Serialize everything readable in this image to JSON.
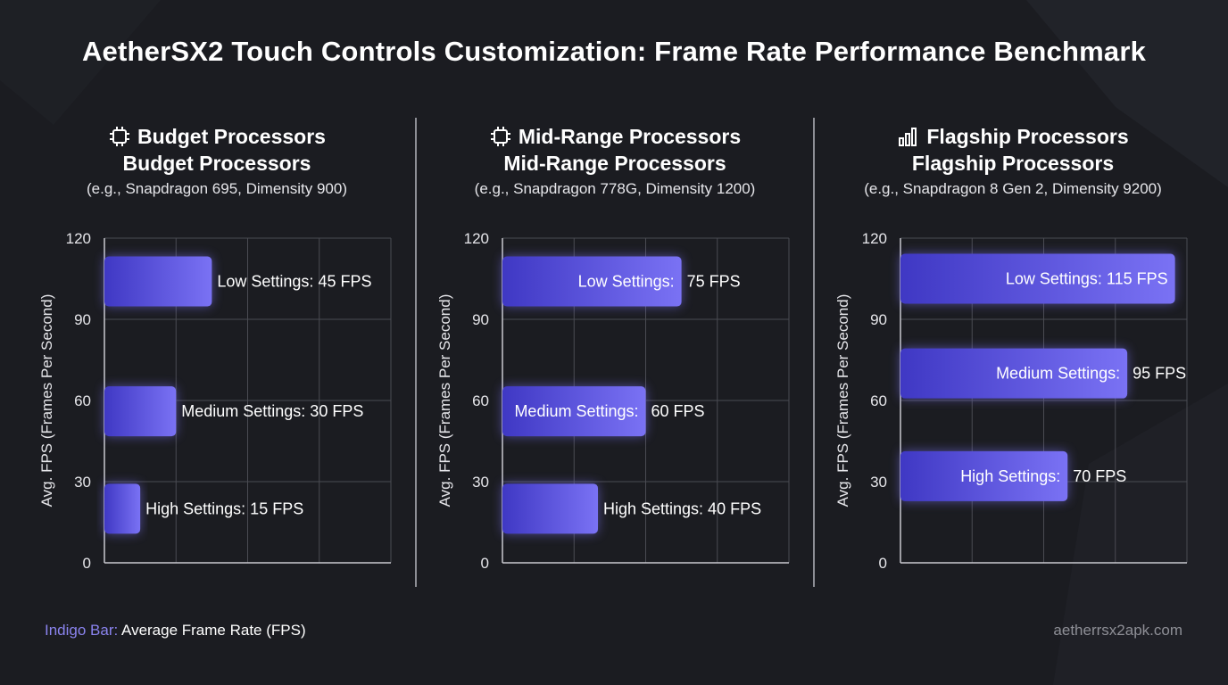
{
  "title": "AetherSX2 Touch Controls Customization: Frame Rate Performance Benchmark",
  "colors": {
    "bar_start": "#3f38c4",
    "bar_end": "#7a72f4",
    "grid": "#4a4b52",
    "axis": "#c9c9cf",
    "divider": "#8d8e95",
    "legend_key": "#8a83ee"
  },
  "legend": {
    "key_label": "Indigo Bar:",
    "key_text": "Average Frame Rate (FPS)"
  },
  "site": "aetherrsx2apk.com",
  "panels": [
    {
      "icon": "chip-icon",
      "title": "Budget Processors",
      "title_repeat": "Budget Processors",
      "subtitle": "(e.g., Snapdragon 695, Dimensity 900)"
    },
    {
      "icon": "chip-icon",
      "title": "Mid-Range Processors",
      "title_repeat": "Mid-Range Processors",
      "subtitle": "(e.g., Snapdragon 778G, Dimensity 1200)"
    },
    {
      "icon": "signal-bars-icon",
      "title": "Flagship Processors",
      "title_repeat": "Flagship Processors",
      "subtitle": "(e.g., Snapdragon 8 Gen 2, Dimensity 9200)"
    }
  ],
  "chart_data": [
    {
      "type": "bar",
      "orientation": "horizontal",
      "title": "Budget Processors",
      "ylabel": "Avg. FPS (Frames Per Second)",
      "ylim": [
        0,
        120
      ],
      "yticks": [
        0,
        30,
        60,
        90,
        120
      ],
      "grid": true,
      "bars": [
        {
          "label": "Low Settings: 45 FPS",
          "value": 45,
          "y": 104
        },
        {
          "label": "Medium Settings: 30 FPS",
          "value": 30,
          "y": 56
        },
        {
          "label": "High Settings: 15 FPS",
          "value": 15,
          "y": 20
        }
      ]
    },
    {
      "type": "bar",
      "orientation": "horizontal",
      "title": "Mid-Range Processors",
      "ylabel": "Avg. FPS (Frames Per Second)",
      "ylim": [
        0,
        120
      ],
      "yticks": [
        0,
        30,
        60,
        90,
        120
      ],
      "grid": true,
      "bars": [
        {
          "label": "Low Settings:",
          "value_label": "75 FPS",
          "value": 75,
          "y": 104
        },
        {
          "label": "Medium Settings:",
          "value_label": "60 FPS",
          "value": 60,
          "y": 56
        },
        {
          "label": "High Settings: 40 FPS",
          "value": 40,
          "y": 20
        }
      ]
    },
    {
      "type": "bar",
      "orientation": "horizontal",
      "title": "Flagship Processors",
      "ylabel": "Avg. FPS (Frames Per Second)",
      "ylim": [
        0,
        120
      ],
      "yticks": [
        0,
        30,
        60,
        90,
        120
      ],
      "grid": true,
      "bars": [
        {
          "label": "Low Settings: 115 FPS",
          "value": 115,
          "y": 105
        },
        {
          "label": "Medium Settings:",
          "value_label": "95 FPS",
          "value": 95,
          "y": 70
        },
        {
          "label": "High Settings:",
          "value_label": "70 FPS",
          "value": 70,
          "y": 32
        }
      ]
    }
  ]
}
